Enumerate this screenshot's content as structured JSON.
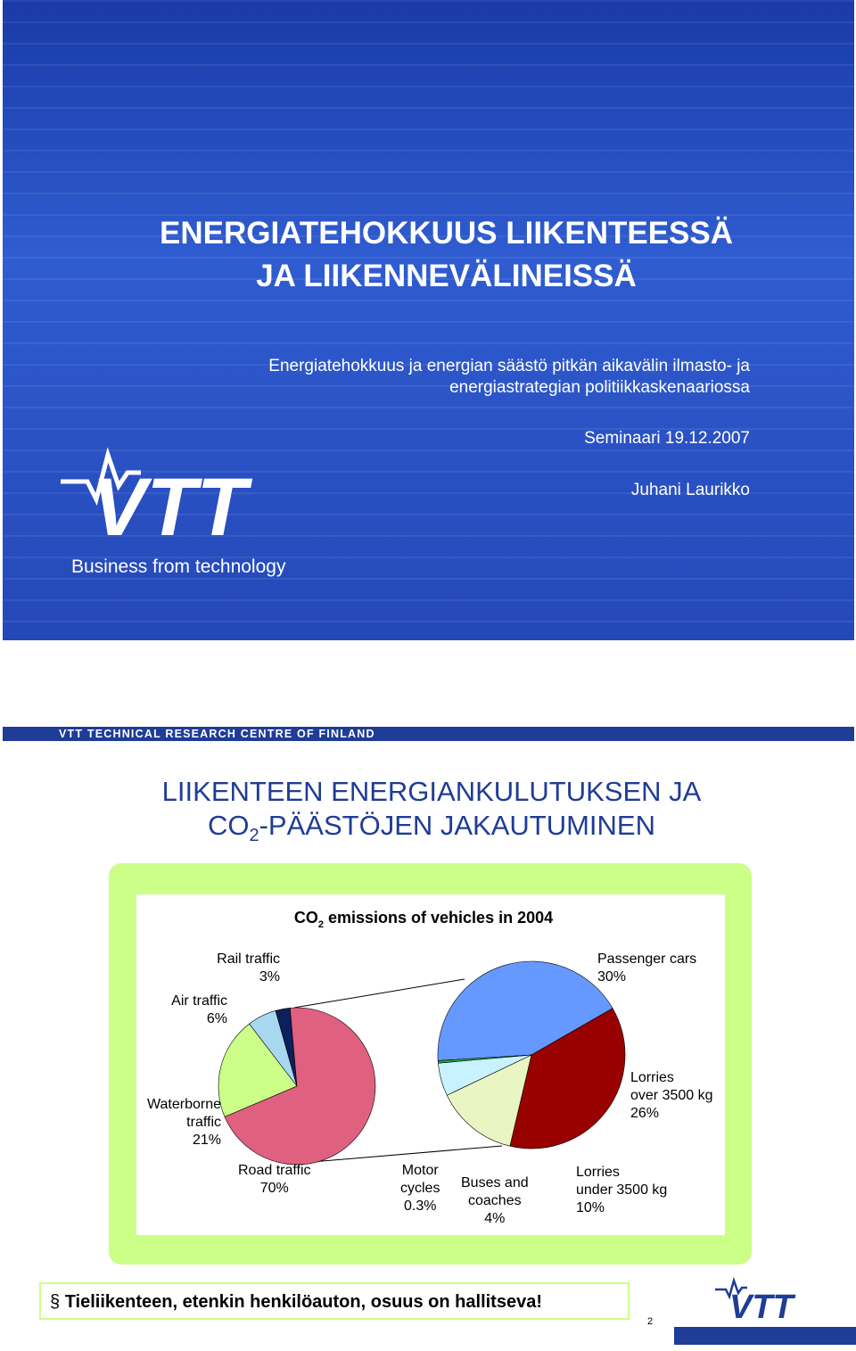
{
  "slide1": {
    "title_lines": [
      "ENERGIATEHOKKUUS LIIKENTEESSÄ",
      "JA LIIKENNEVÄLINEISSÄ"
    ],
    "subtitle_lines": [
      "Energiatehokkuus ja energian säästö pitkän aikavälin ilmasto- ja",
      "energiastrategian politiikkaskenaariossa"
    ],
    "event": "Seminaari 19.12.2007",
    "author": "Juhani Laurikko",
    "logo_text": "VTT",
    "tagline": "Business from technology"
  },
  "slide2": {
    "header": "VTT TECHNICAL RESEARCH CENTRE OF FINLAND",
    "title_line1": "LIIKENTEEN ENERGIANKULUTUKSEN JA",
    "title_line2_start": "CO",
    "title_line2_sub": "2",
    "title_line2_end": "-PÄÄSTÖJEN JAKAUTUMINEN",
    "bullet_symbol": "§",
    "bullet": "Tieliikenteen, etenkin henkilöauton, osuus on hallitseva!",
    "page_number": "2",
    "logo_text": "VTT"
  },
  "chart_data": {
    "type": "pie",
    "title_start": "CO",
    "title_sub": "2",
    "title_end": " emissions of vehicles in 2004",
    "categories": [
      "Rail traffic",
      "Air traffic",
      "Waterborne\ntraffic",
      "Road traffic"
    ],
    "values": [
      3,
      6,
      21,
      70
    ],
    "value_labels": [
      "3%",
      "6%",
      "21%",
      "70%"
    ],
    "colors": [
      "#0d1f5c",
      "#a8d8f0",
      "#ccff88",
      "#e06080"
    ],
    "breakdown": {
      "categories": [
        "Passenger cars",
        "Lorries\nover 3500 kg",
        "Lorries\nunder 3500 kg",
        "Buses and\ncoaches",
        "Motor\ncycles"
      ],
      "values": [
        30,
        26,
        10,
        4,
        0.3
      ],
      "value_labels": [
        "30%",
        "26%",
        "10%",
        "4%",
        "0.3%"
      ],
      "colors": [
        "#6699ff",
        "#990000",
        "#eaf5c4",
        "#c8f2ff",
        "#22aa44"
      ]
    }
  }
}
